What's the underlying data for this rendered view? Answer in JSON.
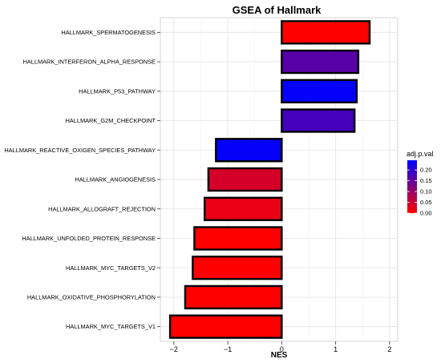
{
  "chart_data": {
    "type": "bar",
    "orientation": "horizontal",
    "title": "GSEA of Hallmark",
    "xlabel": "NES",
    "ylabel": "",
    "xlim": [
      -2.25,
      2.15
    ],
    "x_ticks": [
      -2,
      -1,
      0,
      1,
      2
    ],
    "grid": true,
    "categories": [
      "HALLMARK_SPERMATOGENESIS",
      "HALLMARK_INTERFERON_ALPHA_RESPONSE",
      "HALLMARK_P53_PATHWAY",
      "HALLMARK_G2M_CHECKPOINT",
      "HALLMARK_REACTIVE_OXIGEN_SPECIES_PATHWAY",
      "HALLMARK_ANGIOGENESIS",
      "HALLMARK_ALLOGRAFT_REJECTION",
      "HALLMARK_UNFOLDED_PROTEIN_RESPONSE",
      "HALLMARK_MYC_TARGETS_V2",
      "HALLMARK_OXIDATIVE_PHOSPHORYLATION",
      "HALLMARK_MYC_TARGETS_V1"
    ],
    "values": [
      1.63,
      1.42,
      1.39,
      1.35,
      -1.22,
      -1.36,
      -1.43,
      -1.62,
      -1.65,
      -1.79,
      -2.07
    ],
    "color_values": [
      0.0,
      0.16,
      0.24,
      0.18,
      0.24,
      0.04,
      0.02,
      0.0,
      0.0,
      0.0,
      0.0
    ],
    "legend": {
      "title": "adj.p.val",
      "position": "right",
      "ticks": [
        "0.00",
        "0.05",
        "0.10",
        "0.15",
        "0.20"
      ],
      "tick_values": [
        0,
        0.05,
        0.1,
        0.15,
        0.2
      ],
      "range": [
        0,
        0.245
      ],
      "low_color": "#ff0000",
      "high_color": "#0000ff"
    }
  }
}
